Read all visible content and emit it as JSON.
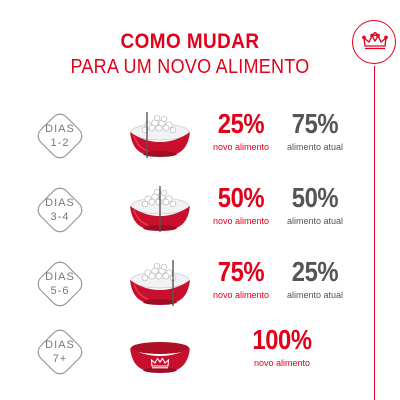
{
  "header": {
    "title_line1": "COMO MUDAR",
    "title_line2": "PARA UM NOVO ALIMENTO"
  },
  "logo": {
    "icon": "crown-icon",
    "color": "#e2001a"
  },
  "colors": {
    "accent": "#e2001a",
    "grey_text": "#555555",
    "bowl_food": "#f2f2f2"
  },
  "steps": [
    {
      "day_word": "DIAS",
      "day_range": "1-2",
      "new_pct": "25%",
      "new_label": "novo alimento",
      "cur_pct": "75%",
      "cur_label": "alimento atual",
      "new_share": 0.25
    },
    {
      "day_word": "DIAS",
      "day_range": "3-4",
      "new_pct": "50%",
      "new_label": "novo alimento",
      "cur_pct": "50%",
      "cur_label": "alimento atual",
      "new_share": 0.5
    },
    {
      "day_word": "DIAS",
      "day_range": "5-6",
      "new_pct": "75%",
      "new_label": "novo alimento",
      "cur_pct": "25%",
      "cur_label": "alimento atual",
      "new_share": 0.75
    },
    {
      "day_word": "DIAS",
      "day_range": "7+",
      "new_pct": "100%",
      "new_label": "novo alimento",
      "new_share": 1.0
    }
  ]
}
